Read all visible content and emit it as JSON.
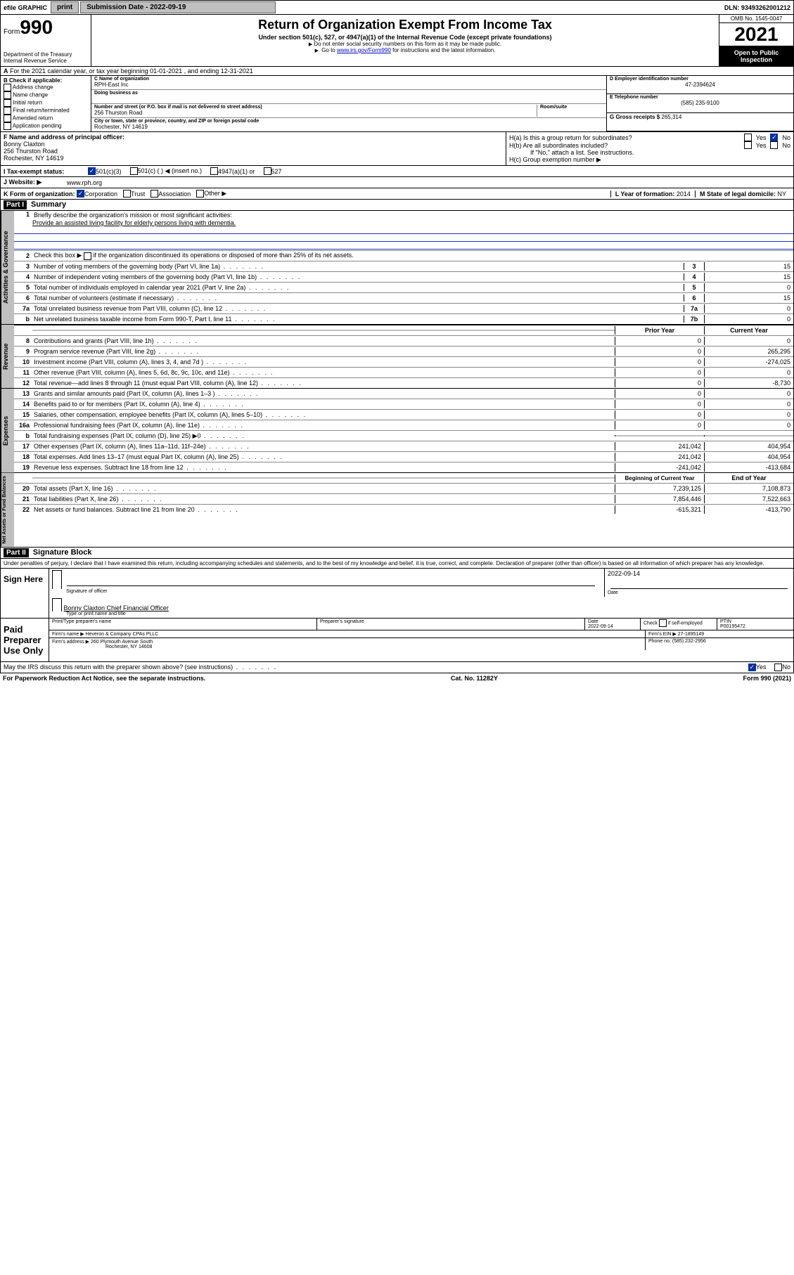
{
  "topbar": {
    "efile_label": "efile GRAPHIC",
    "print_btn": "print",
    "submission_label": "Submission Date - 2022-09-19",
    "dln_label": "DLN: 93493262001212"
  },
  "header": {
    "form_prefix": "Form",
    "form_number": "990",
    "dept": "Department of the Treasury",
    "irs": "Internal Revenue Service",
    "title": "Return of Organization Exempt From Income Tax",
    "sub1": "Under section 501(c), 527, or 4947(a)(1) of the Internal Revenue Code (except private foundations)",
    "sub2": "Do not enter social security numbers on this form as it may be made public.",
    "sub3_prefix": "Go to ",
    "sub3_link": "www.irs.gov/Form990",
    "sub3_suffix": " for instructions and the latest information.",
    "omb": "OMB No. 1545-0047",
    "year": "2021",
    "inspect": "Open to Public Inspection"
  },
  "row_a": "For the 2021 calendar year, or tax year beginning 01-01-2021   , and ending 12-31-2021",
  "col_b": {
    "heading": "B Check if applicable:",
    "opts": [
      "Address change",
      "Name change",
      "Initial return",
      "Final return/terminated",
      "Amended return",
      "Application pending"
    ]
  },
  "col_c": {
    "name_lbl": "C Name of organization",
    "name_val": "RPH-East Inc",
    "dba_lbl": "Doing business as",
    "dba_val": "",
    "street_lbl": "Number and street (or P.O. box if mail is not delivered to street address)",
    "street_val": "256 Thurston Road",
    "room_lbl": "Room/suite",
    "city_lbl": "City or town, state or province, country, and ZIP or foreign postal code",
    "city_val": "Rochester, NY  14619"
  },
  "col_d": {
    "ein_lbl": "D Employer identification number",
    "ein_val": "47-2394624",
    "phone_lbl": "E Telephone number",
    "phone_val": "(585) 235-9100",
    "gross_lbl": "G Gross receipts $",
    "gross_val": "265,314"
  },
  "row_f": {
    "lbl": "F  Name and address of principal officer:",
    "name": "Bonny Claxton",
    "addr1": "256 Thurston Road",
    "addr2": "Rochester, NY  14619"
  },
  "row_h": {
    "ha": "H(a)  Is this a group return for subordinates?",
    "hb": "H(b)  Are all subordinates included?",
    "hb_note": "If \"No,\" attach a list. See instructions.",
    "hc": "H(c)  Group exemption number ▶",
    "yes": "Yes",
    "no": "No"
  },
  "row_i": {
    "lbl": "I   Tax-exempt status:",
    "o1": "501(c)(3)",
    "o2": "501(c) (  ) ◀ (insert no.)",
    "o3": "4947(a)(1) or",
    "o4": "527"
  },
  "row_j": {
    "lbl": "J   Website: ▶",
    "val": "www.rph.org"
  },
  "row_k": {
    "lbl": "K Form of organization:",
    "o1": "Corporation",
    "o2": "Trust",
    "o3": "Association",
    "o4": "Other ▶",
    "l_lbl": "L Year of formation:",
    "l_val": "2014",
    "m_lbl": "M State of legal domicile:",
    "m_val": "NY"
  },
  "part1": {
    "hdr": "Part I",
    "title": "Summary",
    "gov_tab": "Activities & Governance",
    "rev_tab": "Revenue",
    "exp_tab": "Expenses",
    "net_tab": "Net Assets or Fund Balances",
    "line1_lbl": "Briefly describe the organization's mission or most significant activities:",
    "line1_val": "Provide an assisted living facility for elderly persons living with dementia.",
    "line2": "Check this box ▶       if the organization discontinued its operations or disposed of more than 25% of its net assets.",
    "rows_gov": [
      {
        "n": "3",
        "d": "Number of voting members of the governing body (Part VI, line 1a)",
        "k": "3",
        "v": "15"
      },
      {
        "n": "4",
        "d": "Number of independent voting members of the governing body (Part VI, line 1b)",
        "k": "4",
        "v": "15"
      },
      {
        "n": "5",
        "d": "Total number of individuals employed in calendar year 2021 (Part V, line 2a)",
        "k": "5",
        "v": "0"
      },
      {
        "n": "6",
        "d": "Total number of volunteers (estimate if necessary)",
        "k": "6",
        "v": "15"
      },
      {
        "n": "7a",
        "d": "Total unrelated business revenue from Part VIII, column (C), line 12",
        "k": "7a",
        "v": "0"
      },
      {
        "n": "b",
        "d": "Net unrelated business taxable income from Form 990-T, Part I, line 11",
        "k": "7b",
        "v": "0"
      }
    ],
    "hdr_prior": "Prior Year",
    "hdr_curr": "Current Year",
    "rows_rev": [
      {
        "n": "8",
        "d": "Contributions and grants (Part VIII, line 1h)",
        "p": "0",
        "c": "0"
      },
      {
        "n": "9",
        "d": "Program service revenue (Part VIII, line 2g)",
        "p": "0",
        "c": "265,295"
      },
      {
        "n": "10",
        "d": "Investment income (Part VIII, column (A), lines 3, 4, and 7d )",
        "p": "0",
        "c": "-274,025"
      },
      {
        "n": "11",
        "d": "Other revenue (Part VIII, column (A), lines 5, 6d, 8c, 9c, 10c, and 11e)",
        "p": "0",
        "c": "0"
      },
      {
        "n": "12",
        "d": "Total revenue—add lines 8 through 11 (must equal Part VIII, column (A), line 12)",
        "p": "0",
        "c": "-8,730"
      }
    ],
    "rows_exp": [
      {
        "n": "13",
        "d": "Grants and similar amounts paid (Part IX, column (A), lines 1–3 )",
        "p": "0",
        "c": "0"
      },
      {
        "n": "14",
        "d": "Benefits paid to or for members (Part IX, column (A), line 4)",
        "p": "0",
        "c": "0"
      },
      {
        "n": "15",
        "d": "Salaries, other compensation, employee benefits (Part IX, column (A), lines 5–10)",
        "p": "0",
        "c": "0"
      },
      {
        "n": "16a",
        "d": "Professional fundraising fees (Part IX, column (A), line 11e)",
        "p": "0",
        "c": "0"
      },
      {
        "n": "b",
        "d": "Total fundraising expenses (Part IX, column (D), line 25) ▶0",
        "p": "",
        "c": "",
        "grey": true
      },
      {
        "n": "17",
        "d": "Other expenses (Part IX, column (A), lines 11a–11d, 11f–24e)",
        "p": "241,042",
        "c": "404,954"
      },
      {
        "n": "18",
        "d": "Total expenses. Add lines 13–17 (must equal Part IX, column (A), line 25)",
        "p": "241,042",
        "c": "404,954"
      },
      {
        "n": "19",
        "d": "Revenue less expenses. Subtract line 18 from line 12",
        "p": "-241,042",
        "c": "-413,684"
      }
    ],
    "hdr_beg": "Beginning of Current Year",
    "hdr_end": "End of Year",
    "rows_net": [
      {
        "n": "20",
        "d": "Total assets (Part X, line 16)",
        "p": "7,239,125",
        "c": "7,108,873"
      },
      {
        "n": "21",
        "d": "Total liabilities (Part X, line 26)",
        "p": "7,854,446",
        "c": "7,522,663"
      },
      {
        "n": "22",
        "d": "Net assets or fund balances. Subtract line 21 from line 20",
        "p": "-615,321",
        "c": "-413,790"
      }
    ]
  },
  "part2": {
    "hdr": "Part II",
    "title": "Signature Block",
    "decl": "Under penalties of perjury, I declare that I have examined this return, including accompanying schedules and statements, and to the best of my knowledge and belief, it is true, correct, and complete. Declaration of preparer (other than officer) is based on all information of which preparer has any knowledge.",
    "sign_here": "Sign Here",
    "sig_officer": "Signature of officer",
    "sig_date": "Date",
    "sig_date_val": "2022-09-14",
    "sig_name": "Bonny Claxton  Chief Financial Officer",
    "sig_name_lbl": "Type or print name and title",
    "paid": "Paid Preparer Use Only",
    "pp_name_lbl": "Print/Type preparer's name",
    "pp_sig_lbl": "Preparer's signature",
    "pp_date_lbl": "Date",
    "pp_date_val": "2022-09-14",
    "pp_check_lbl": "Check         if self-employed",
    "pp_ptin_lbl": "PTIN",
    "pp_ptin_val": "P00195472",
    "firm_name_lbl": "Firm's name    ▶",
    "firm_name_val": "Heveron & Company CPAs PLLC",
    "firm_ein_lbl": "Firm's EIN ▶",
    "firm_ein_val": "27-1895149",
    "firm_addr_lbl": "Firm's address ▶",
    "firm_addr_val1": "260 Plymouth Avenue South",
    "firm_addr_val2": "Rochester, NY  14608",
    "firm_phone_lbl": "Phone no.",
    "firm_phone_val": "(585) 232-2956",
    "discuss": "May the IRS discuss this return with the preparer shown above? (see instructions)",
    "yes": "Yes",
    "no": "No"
  },
  "footer": {
    "left": "For Paperwork Reduction Act Notice, see the separate instructions.",
    "mid": "Cat. No. 11282Y",
    "right": "Form 990 (2021)"
  }
}
